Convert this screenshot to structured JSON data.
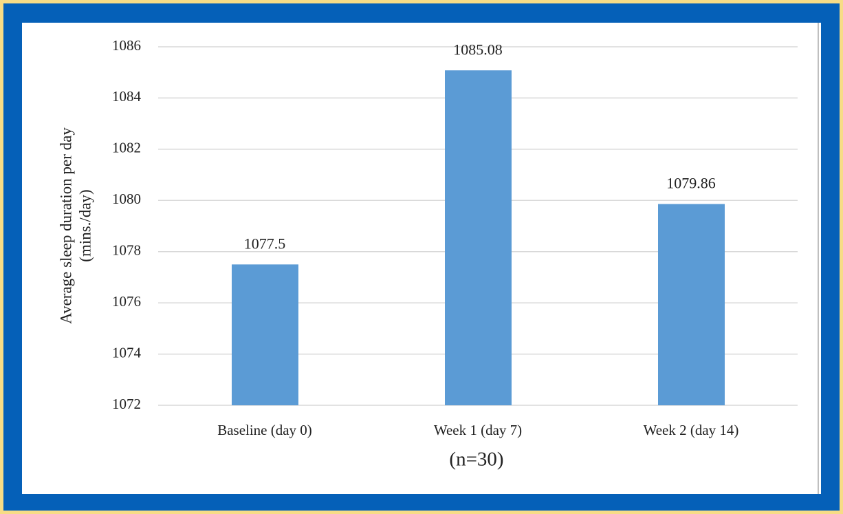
{
  "chart_data": {
    "type": "bar",
    "categories": [
      "Baseline (day 0)",
      "Week 1 (day 7)",
      "Week 2 (day 14)"
    ],
    "values": [
      1077.5,
      1085.08,
      1079.86
    ],
    "color": "#5b9bd5",
    "ylim": [
      1072,
      1086
    ],
    "yticks": [
      1072,
      1074,
      1076,
      1078,
      1080,
      1082,
      1084,
      1086
    ],
    "ylabel": [
      "Average sleep duration per day",
      "(mins./day)"
    ],
    "xlabel": "(n=30)",
    "grid": true
  }
}
